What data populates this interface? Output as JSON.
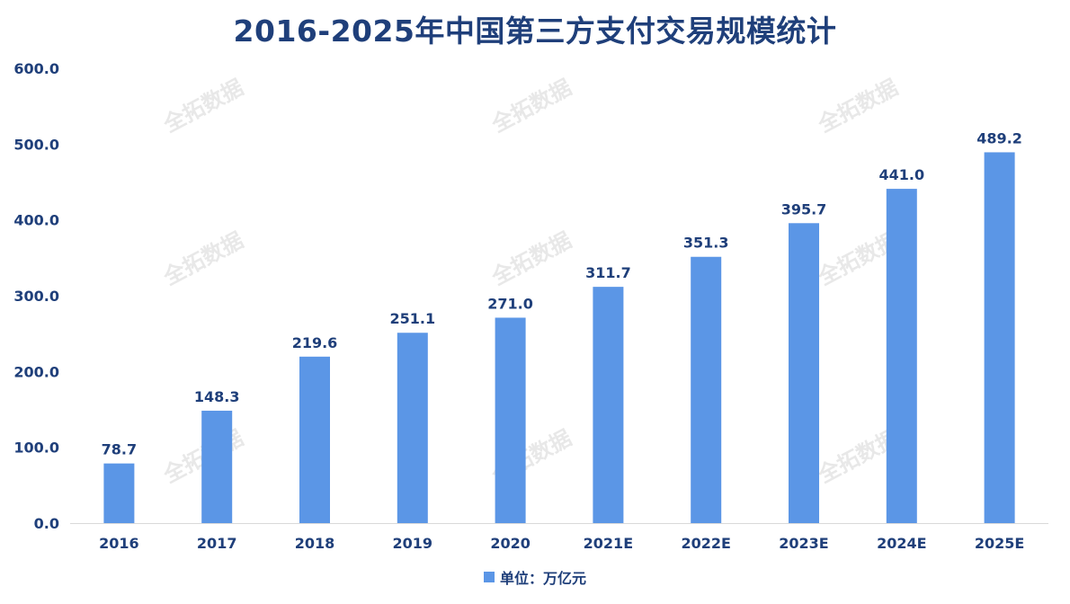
{
  "chart_data": {
    "type": "bar",
    "title": "2016-2025年中国第三方支付交易规模统计",
    "categories": [
      "2016",
      "2017",
      "2018",
      "2019",
      "2020",
      "2021E",
      "2022E",
      "2023E",
      "2024E",
      "2025E"
    ],
    "series": [
      {
        "name": "单位：万亿元",
        "values": [
          78.7,
          148.3,
          219.6,
          251.1,
          271.0,
          311.7,
          351.3,
          395.7,
          441.0,
          489.2
        ]
      }
    ],
    "data_labels": [
      "78.7",
      "148.3",
      "219.6",
      "251.1",
      "271.0",
      "311.7",
      "351.3",
      "395.7",
      "441.0",
      "489.2"
    ],
    "y_ticks": [
      "0.0",
      "100.0",
      "200.0",
      "300.0",
      "400.0",
      "500.0",
      "600.0"
    ],
    "ylim": [
      0,
      600
    ],
    "grid": false,
    "legend_position": "bottom-center",
    "bar_color": "#5b96e6",
    "text_color": "#1f3f7a",
    "watermark_text": "全拓数据"
  }
}
